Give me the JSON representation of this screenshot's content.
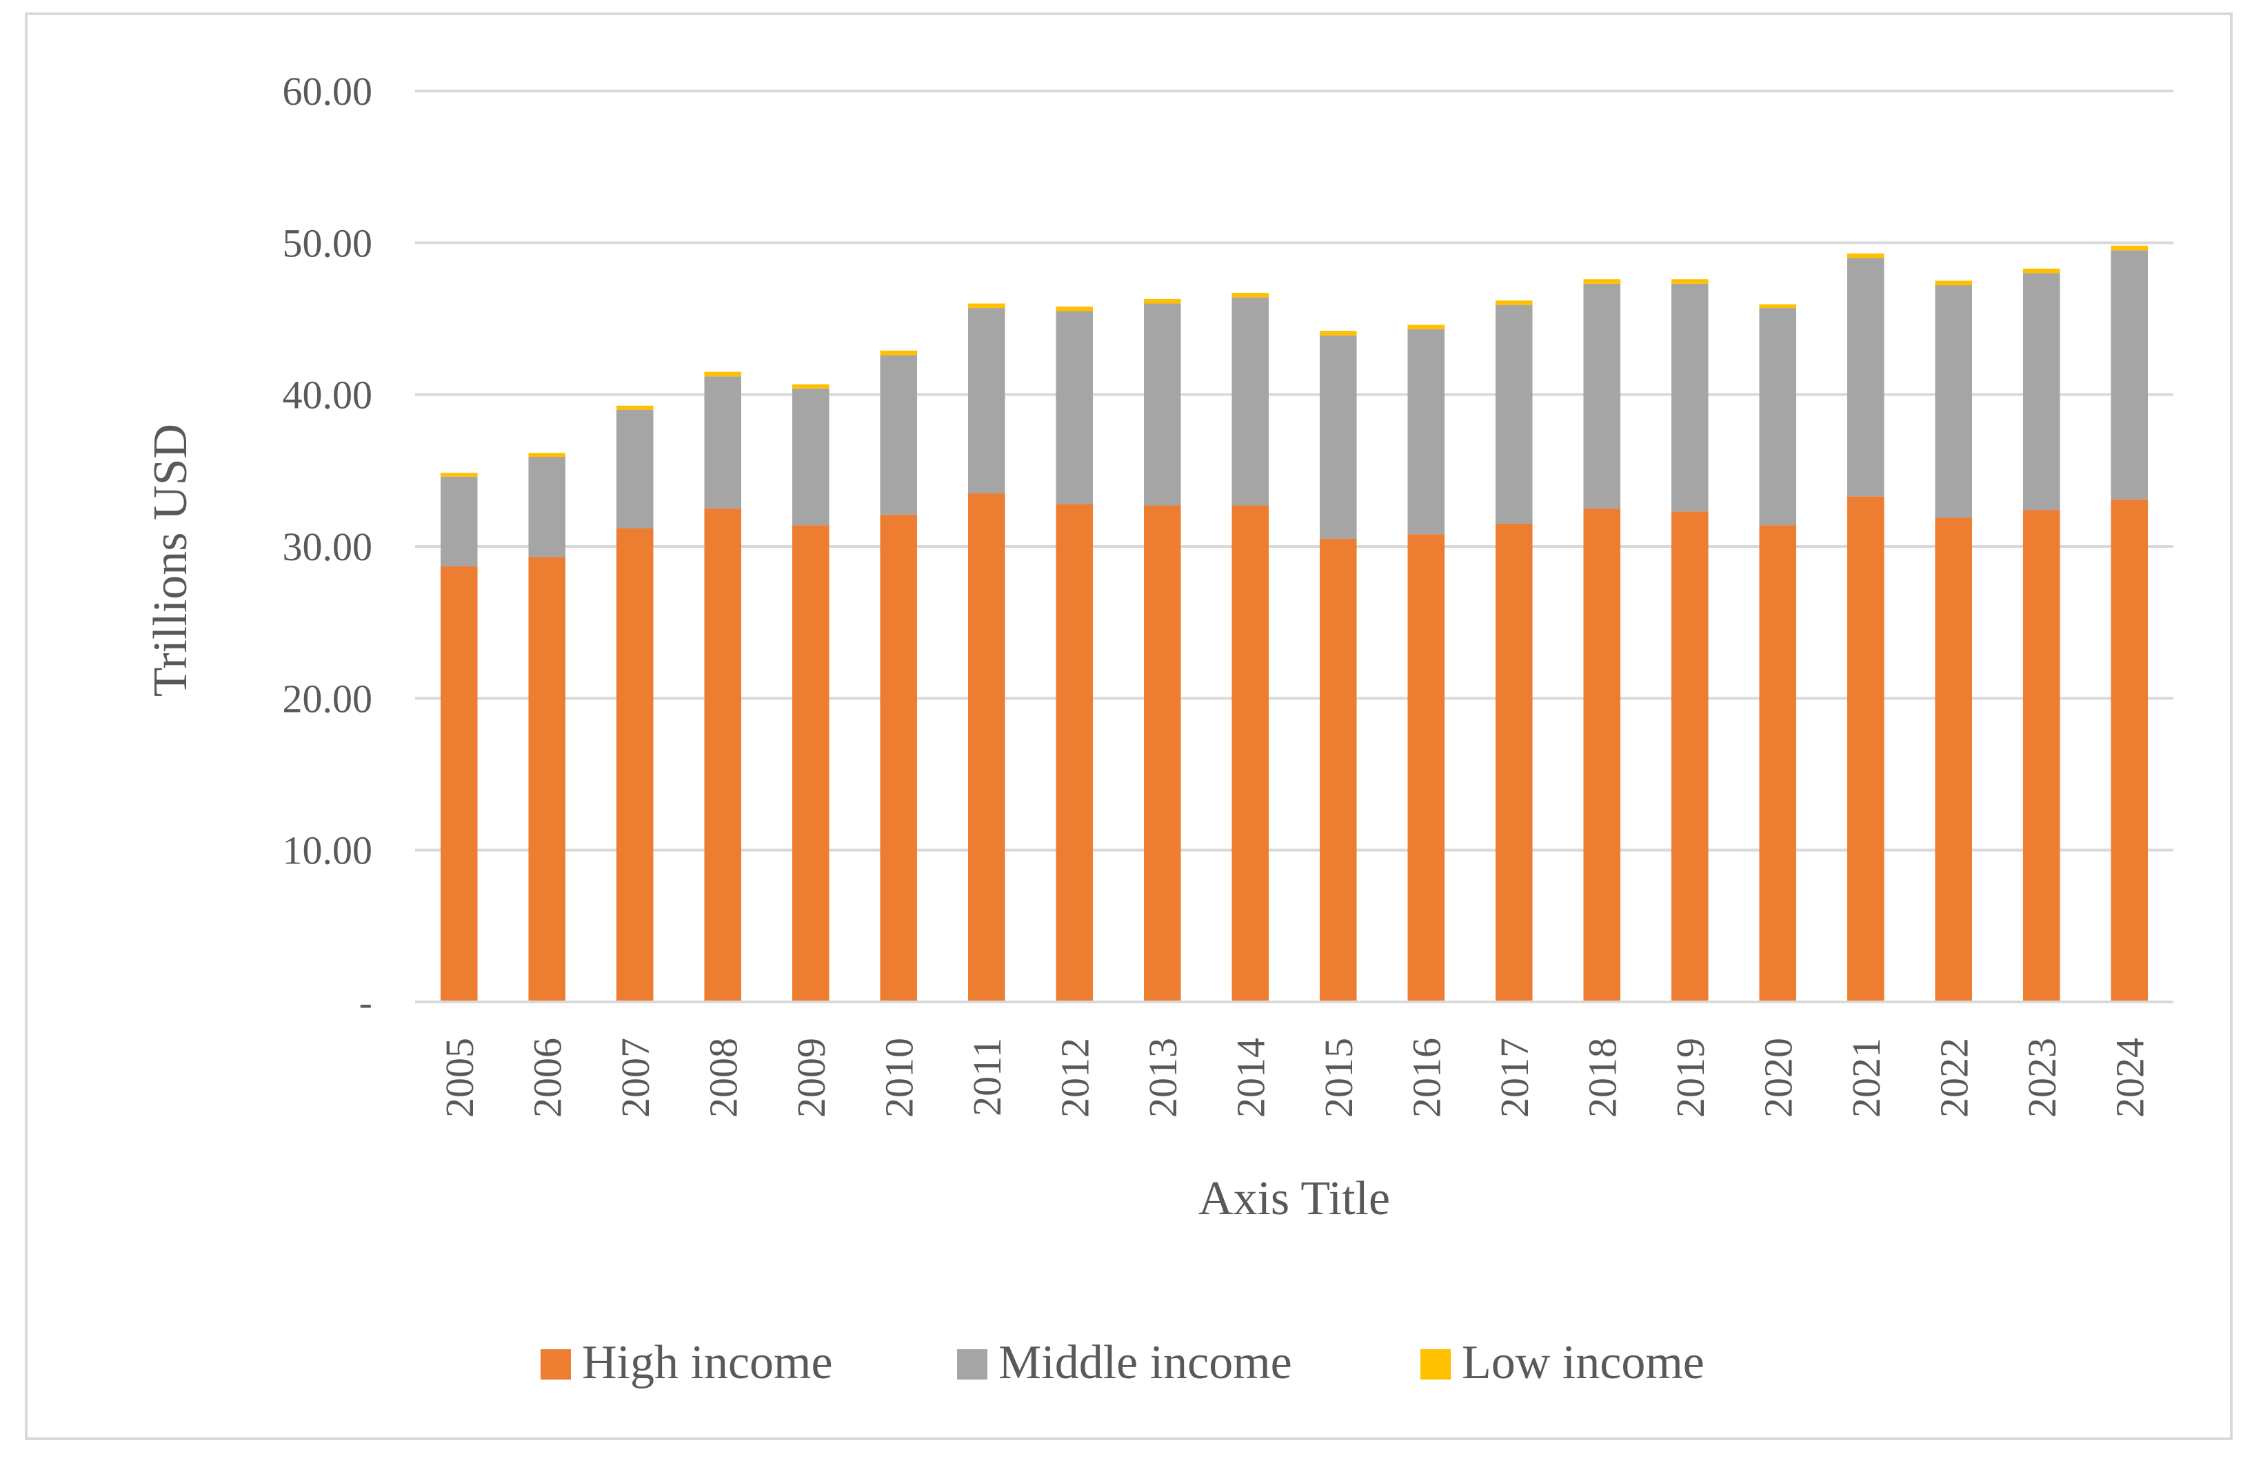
{
  "chart_data": {
    "type": "bar",
    "stacked": true,
    "title": "",
    "xlabel": "Axis Title",
    "ylabel": "Trillions USD",
    "ylim": [
      0,
      60
    ],
    "y_ticks": [
      "-",
      "10.00",
      "20.00",
      "30.00",
      "40.00",
      "50.00",
      "60.00"
    ],
    "y_tick_values": [
      0,
      10,
      20,
      30,
      40,
      50,
      60
    ],
    "grid": true,
    "legend_position": "bottom",
    "categories": [
      "2005",
      "2006",
      "2007",
      "2008",
      "2009",
      "2010",
      "2011",
      "2012",
      "2013",
      "2014",
      "2015",
      "2016",
      "2017",
      "2018",
      "2019",
      "2020",
      "2021",
      "2022",
      "2023",
      "2024"
    ],
    "series": [
      {
        "name": "High income",
        "color": "#ed7d31",
        "values": [
          28.7,
          29.3,
          31.2,
          32.5,
          31.4,
          32.1,
          33.5,
          32.8,
          32.7,
          32.7,
          30.5,
          30.8,
          31.5,
          32.5,
          32.3,
          31.4,
          33.3,
          31.9,
          32.4,
          33.1
        ]
      },
      {
        "name": "Middle income",
        "color": "#a5a5a5",
        "values": [
          5.9,
          6.6,
          7.8,
          8.7,
          9.0,
          10.5,
          12.2,
          12.7,
          13.3,
          13.7,
          13.4,
          13.5,
          14.4,
          14.8,
          15.0,
          14.3,
          15.7,
          15.3,
          15.6,
          16.4
        ]
      },
      {
        "name": "Low income",
        "color": "#ffc000",
        "values": [
          0.25,
          0.26,
          0.27,
          0.3,
          0.28,
          0.3,
          0.3,
          0.3,
          0.3,
          0.3,
          0.3,
          0.3,
          0.3,
          0.3,
          0.3,
          0.25,
          0.3,
          0.3,
          0.3,
          0.3
        ]
      }
    ]
  }
}
